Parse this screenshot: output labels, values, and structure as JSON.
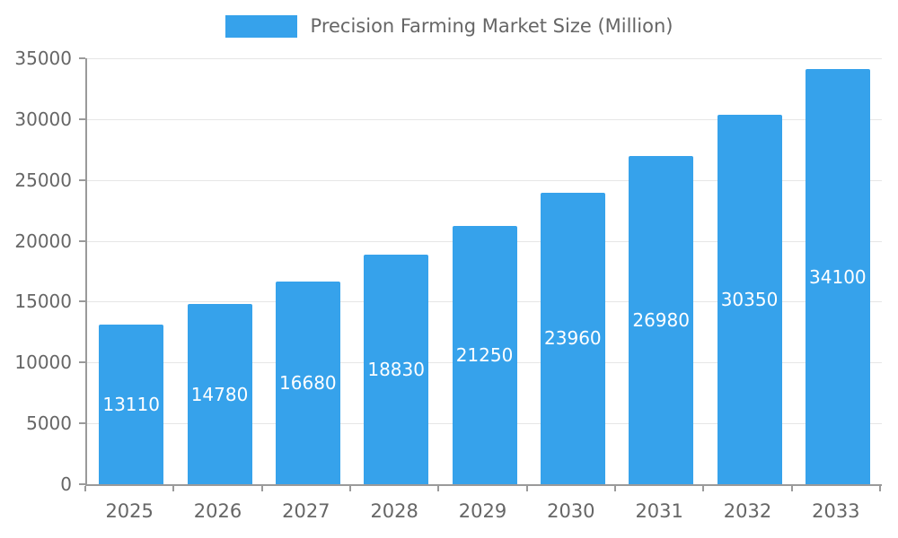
{
  "legend": {
    "label": "Precision Farming Market Size (Million)"
  },
  "chart_data": {
    "type": "bar",
    "title": "Precision Farming Market Size (Million)",
    "categories": [
      "2025",
      "2026",
      "2027",
      "2028",
      "2029",
      "2030",
      "2031",
      "2032",
      "2033"
    ],
    "values": [
      13110,
      14780,
      16680,
      18830,
      21250,
      23960,
      26980,
      30350,
      34100
    ],
    "xlabel": "",
    "ylabel": "",
    "ylim": [
      0,
      35000
    ],
    "ytick_step": 5000,
    "ytick_labels": [
      "0",
      "5000",
      "10000",
      "15000",
      "20000",
      "25000",
      "30000",
      "35000"
    ],
    "grid": true,
    "legend_position": "top-center",
    "bar_color": "#36A2EB",
    "value_label_color": "#ffffff",
    "axis_text_color": "#666666",
    "grid_color": "#e6e6e6",
    "axis_line_color": "#9a9a9a"
  }
}
